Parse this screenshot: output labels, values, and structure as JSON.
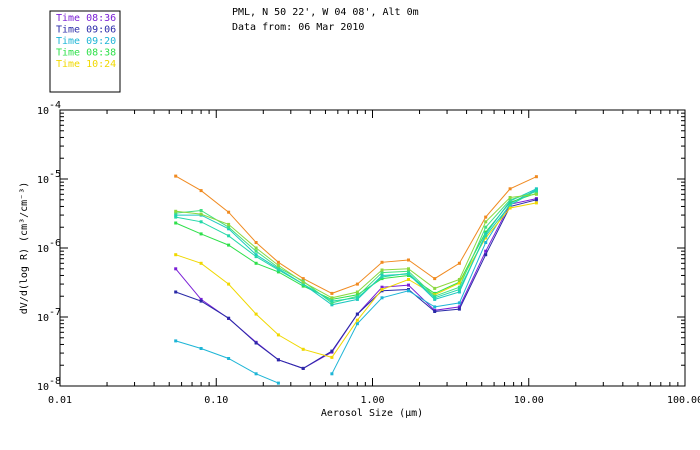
{
  "header": {
    "line1": "PML, N 50 22', W 04 08', Alt 0m",
    "line2": "Data from: 06 Mar 2010"
  },
  "chart_data": {
    "type": "line",
    "xscale": "log",
    "yscale": "log",
    "xlim": [
      0.01,
      100
    ],
    "ylim": [
      1e-08,
      0.0001
    ],
    "xlabel": "Aerosol Size (µm)",
    "ylabel": "dV/d(log R) (cm³/cm⁻³)",
    "xticks": [
      {
        "value": 0.01,
        "label": "0.01"
      },
      {
        "value": 0.1,
        "label": "0.10"
      },
      {
        "value": 1,
        "label": "1.00"
      },
      {
        "value": 10,
        "label": "10.00"
      },
      {
        "value": 100,
        "label": "100.00"
      }
    ],
    "yticks": [
      {
        "value": 1e-08,
        "mant": "10",
        "exp": "-8"
      },
      {
        "value": 1e-07,
        "mant": "10",
        "exp": "-7"
      },
      {
        "value": 1e-06,
        "mant": "10",
        "exp": "-6"
      },
      {
        "value": 1e-05,
        "mant": "10",
        "exp": "-5"
      },
      {
        "value": 0.0001,
        "mant": "10",
        "exp": "-4"
      }
    ],
    "x": [
      0.055,
      0.08,
      0.12,
      0.18,
      0.25,
      0.36,
      0.55,
      0.8,
      1.15,
      1.7,
      2.5,
      3.6,
      5.3,
      7.6,
      11.2
    ],
    "legend_position": "top-left",
    "series": [
      {
        "name": "Time 08:36",
        "color": "#7a1fd6",
        "values": [
          5e-07,
          1.8e-07,
          9.5e-08,
          4.3e-08,
          2.4e-08,
          1.8e-08,
          3.1e-08,
          1.1e-07,
          2.7e-07,
          2.9e-07,
          1.25e-07,
          1.4e-07,
          9e-07,
          4.3e-06,
          5.2e-06
        ]
      },
      {
        "name": "Time 09:06",
        "color": "#2a2aa8",
        "values": [
          2.3e-07,
          1.7e-07,
          9.6e-08,
          4.2e-08,
          2.4e-08,
          1.8e-08,
          3.2e-08,
          1.1e-07,
          2.4e-07,
          2.5e-07,
          1.2e-07,
          1.3e-07,
          8e-07,
          4e-06,
          5e-06
        ]
      },
      {
        "name": "Time 09:20",
        "color": "#1db5d6",
        "values": [
          4.5e-08,
          3.5e-08,
          2.5e-08,
          1.5e-08,
          1.1e-08,
          null,
          1.5e-08,
          8e-08,
          1.9e-07,
          2.4e-07,
          1.4e-07,
          1.6e-07,
          1.2e-06,
          4.4e-06,
          7e-06
        ]
      },
      {
        "name": "Time 08:38",
        "color": "#2ee04a",
        "values": [
          2.3e-06,
          1.6e-06,
          1.1e-06,
          6e-07,
          4.5e-07,
          2.8e-07,
          1.8e-07,
          2.1e-07,
          3.6e-07,
          4e-07,
          2.2e-07,
          3.2e-07,
          1.7e-06,
          4.6e-06,
          6.2e-06
        ]
      },
      {
        "name": "Time 10:24",
        "color": "#f0d800",
        "values": [
          8e-07,
          6e-07,
          3e-07,
          1.1e-07,
          5.5e-08,
          3.4e-08,
          2.6e-08,
          9e-08,
          2.5e-07,
          3.5e-07,
          2.1e-07,
          3.1e-07,
          1.4e-06,
          3.8e-06,
          4.5e-06
        ]
      },
      {
        "name": "",
        "color": "#f08a20",
        "values": [
          1.1e-05,
          6.8e-06,
          3.3e-06,
          1.2e-06,
          6.2e-07,
          3.6e-07,
          2.2e-07,
          3e-07,
          6.2e-07,
          6.7e-07,
          3.6e-07,
          6e-07,
          2.8e-06,
          7.2e-06,
          1.08e-05
        ]
      },
      {
        "name": "",
        "color": "#1cc8c0",
        "values": [
          3e-06,
          3e-06,
          1.9e-06,
          8e-07,
          5e-07,
          3e-07,
          1.5e-07,
          1.8e-07,
          4e-07,
          4.2e-07,
          1.8e-07,
          2.3e-07,
          1.6e-06,
          4.8e-06,
          7.2e-06
        ]
      },
      {
        "name": "",
        "color": "#40e080",
        "values": [
          3.2e-06,
          3.5e-06,
          2e-06,
          9e-07,
          5.2e-07,
          3.3e-07,
          1.6e-07,
          2e-07,
          4.4e-07,
          4.6e-07,
          2e-07,
          2.7e-07,
          2e-06,
          5e-06,
          6.6e-06
        ]
      },
      {
        "name": "",
        "color": "#22d8a8",
        "values": [
          2.8e-06,
          2.4e-06,
          1.5e-06,
          7.5e-07,
          4.8e-07,
          3e-07,
          1.7e-07,
          1.9e-07,
          3.8e-07,
          4.3e-07,
          1.9e-07,
          2.5e-07,
          1.5e-06,
          4.2e-06,
          6.8e-06
        ]
      },
      {
        "name": "",
        "color": "#8cd840",
        "values": [
          3.4e-06,
          3.1e-06,
          2.2e-06,
          1e-06,
          5.6e-07,
          3.2e-07,
          1.9e-07,
          2.3e-07,
          4.8e-07,
          5e-07,
          2.6e-07,
          3.5e-07,
          2.4e-06,
          5.4e-06,
          6e-06
        ]
      }
    ]
  }
}
